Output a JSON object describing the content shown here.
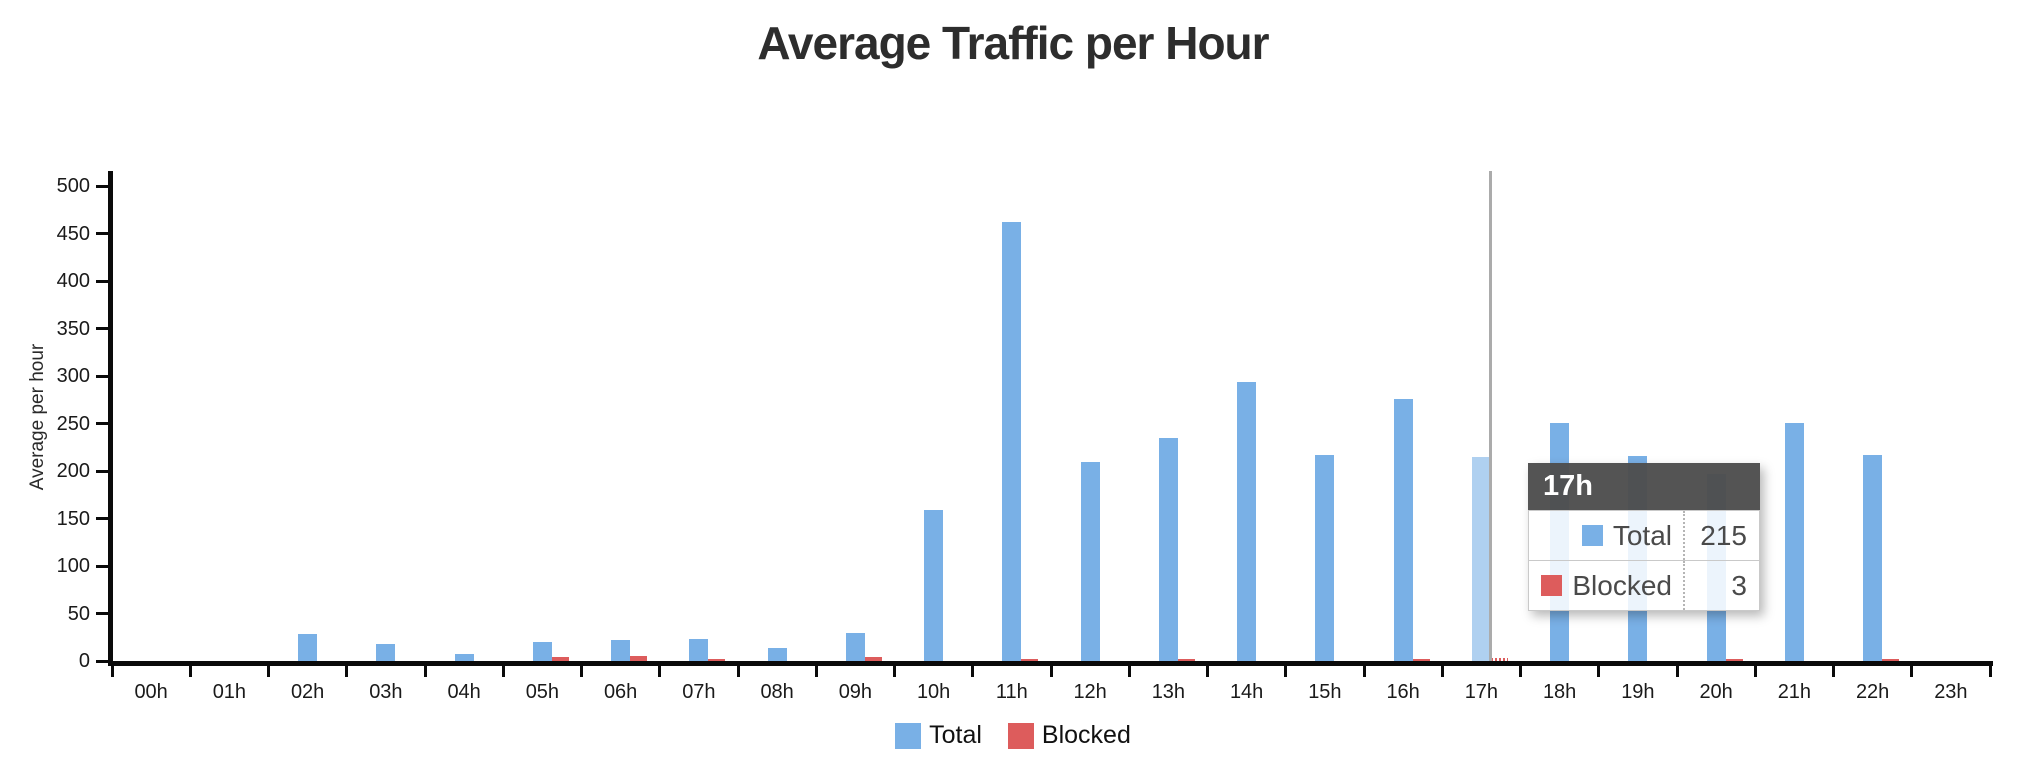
{
  "title": "Average Traffic per Hour",
  "chart_data": {
    "type": "bar",
    "title": "Average Traffic per Hour",
    "xlabel": "",
    "ylabel": "Average per hour",
    "categories": [
      "00h",
      "01h",
      "02h",
      "03h",
      "04h",
      "05h",
      "06h",
      "07h",
      "08h",
      "09h",
      "10h",
      "11h",
      "12h",
      "13h",
      "14h",
      "15h",
      "16h",
      "17h",
      "18h",
      "19h",
      "20h",
      "21h",
      "22h",
      "23h"
    ],
    "series": [
      {
        "name": "Total",
        "color": "#79B0E6",
        "values": [
          0,
          0,
          28,
          18,
          7,
          20,
          22,
          23,
          14,
          30,
          159,
          462,
          210,
          235,
          294,
          217,
          276,
          215,
          251,
          216,
          197,
          251,
          217,
          0
        ]
      },
      {
        "name": "Blocked",
        "color": "#DD5C5C",
        "values": [
          0,
          0,
          0,
          0,
          0,
          4,
          5,
          2,
          0,
          4,
          0,
          2,
          0,
          2,
          0,
          0,
          2,
          3,
          0,
          0,
          2,
          0,
          2,
          0
        ]
      }
    ],
    "ylim": [
      0,
      500
    ],
    "yticks": [
      0,
      50,
      100,
      150,
      200,
      250,
      300,
      350,
      400,
      450,
      500
    ],
    "grid": false,
    "legend_position": "bottom",
    "hovered_category": "17h",
    "hovered_total_color": "#AFD0F0",
    "axis_color": "#0a0a0a",
    "hover_line_color": "#ababab"
  },
  "tooltip": {
    "title": "17h",
    "rows": [
      {
        "label": "Total",
        "value": "215",
        "color": "#79B0E6"
      },
      {
        "label": "Blocked",
        "value": "3",
        "color": "#DD5C5C"
      }
    ]
  },
  "legend": {
    "items": [
      {
        "label": "Total",
        "color": "#79B0E6"
      },
      {
        "label": "Blocked",
        "color": "#DD5C5C"
      }
    ]
  }
}
